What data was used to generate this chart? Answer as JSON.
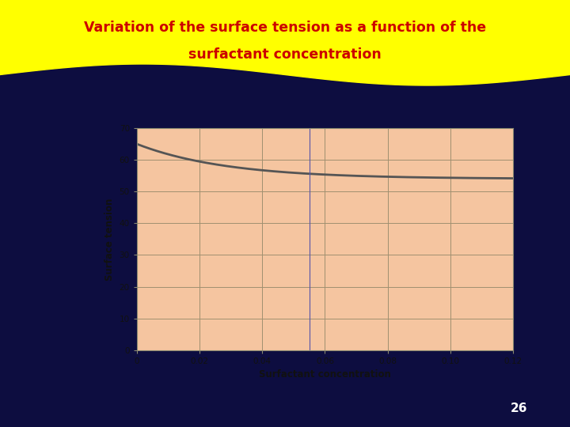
{
  "title_line1": "Variation of the surface tension as a function of the",
  "title_line2": "surfactant concentration",
  "title_color": "#cc0000",
  "title_bg_color": "#ffff00",
  "page_bg_color": "#0d0d40",
  "plot_bg_color": "#f5c5a0",
  "outer_panel_color": "#f0c090",
  "xlabel": "Surfactant concentration",
  "ylabel": "Surface tension",
  "xlim": [
    0,
    0.12
  ],
  "ylim": [
    0,
    70
  ],
  "xticks": [
    0,
    0.02,
    0.04,
    0.06,
    0.08,
    0.1,
    0.12
  ],
  "yticks": [
    0,
    10,
    20,
    30,
    40,
    50,
    60,
    70
  ],
  "grid_color": "#a09070",
  "line_color": "#555555",
  "vline_x": 0.055,
  "page_number": "26",
  "curve_y0": 65.0,
  "curve_ymin": 54.0,
  "curve_decay": 35
}
